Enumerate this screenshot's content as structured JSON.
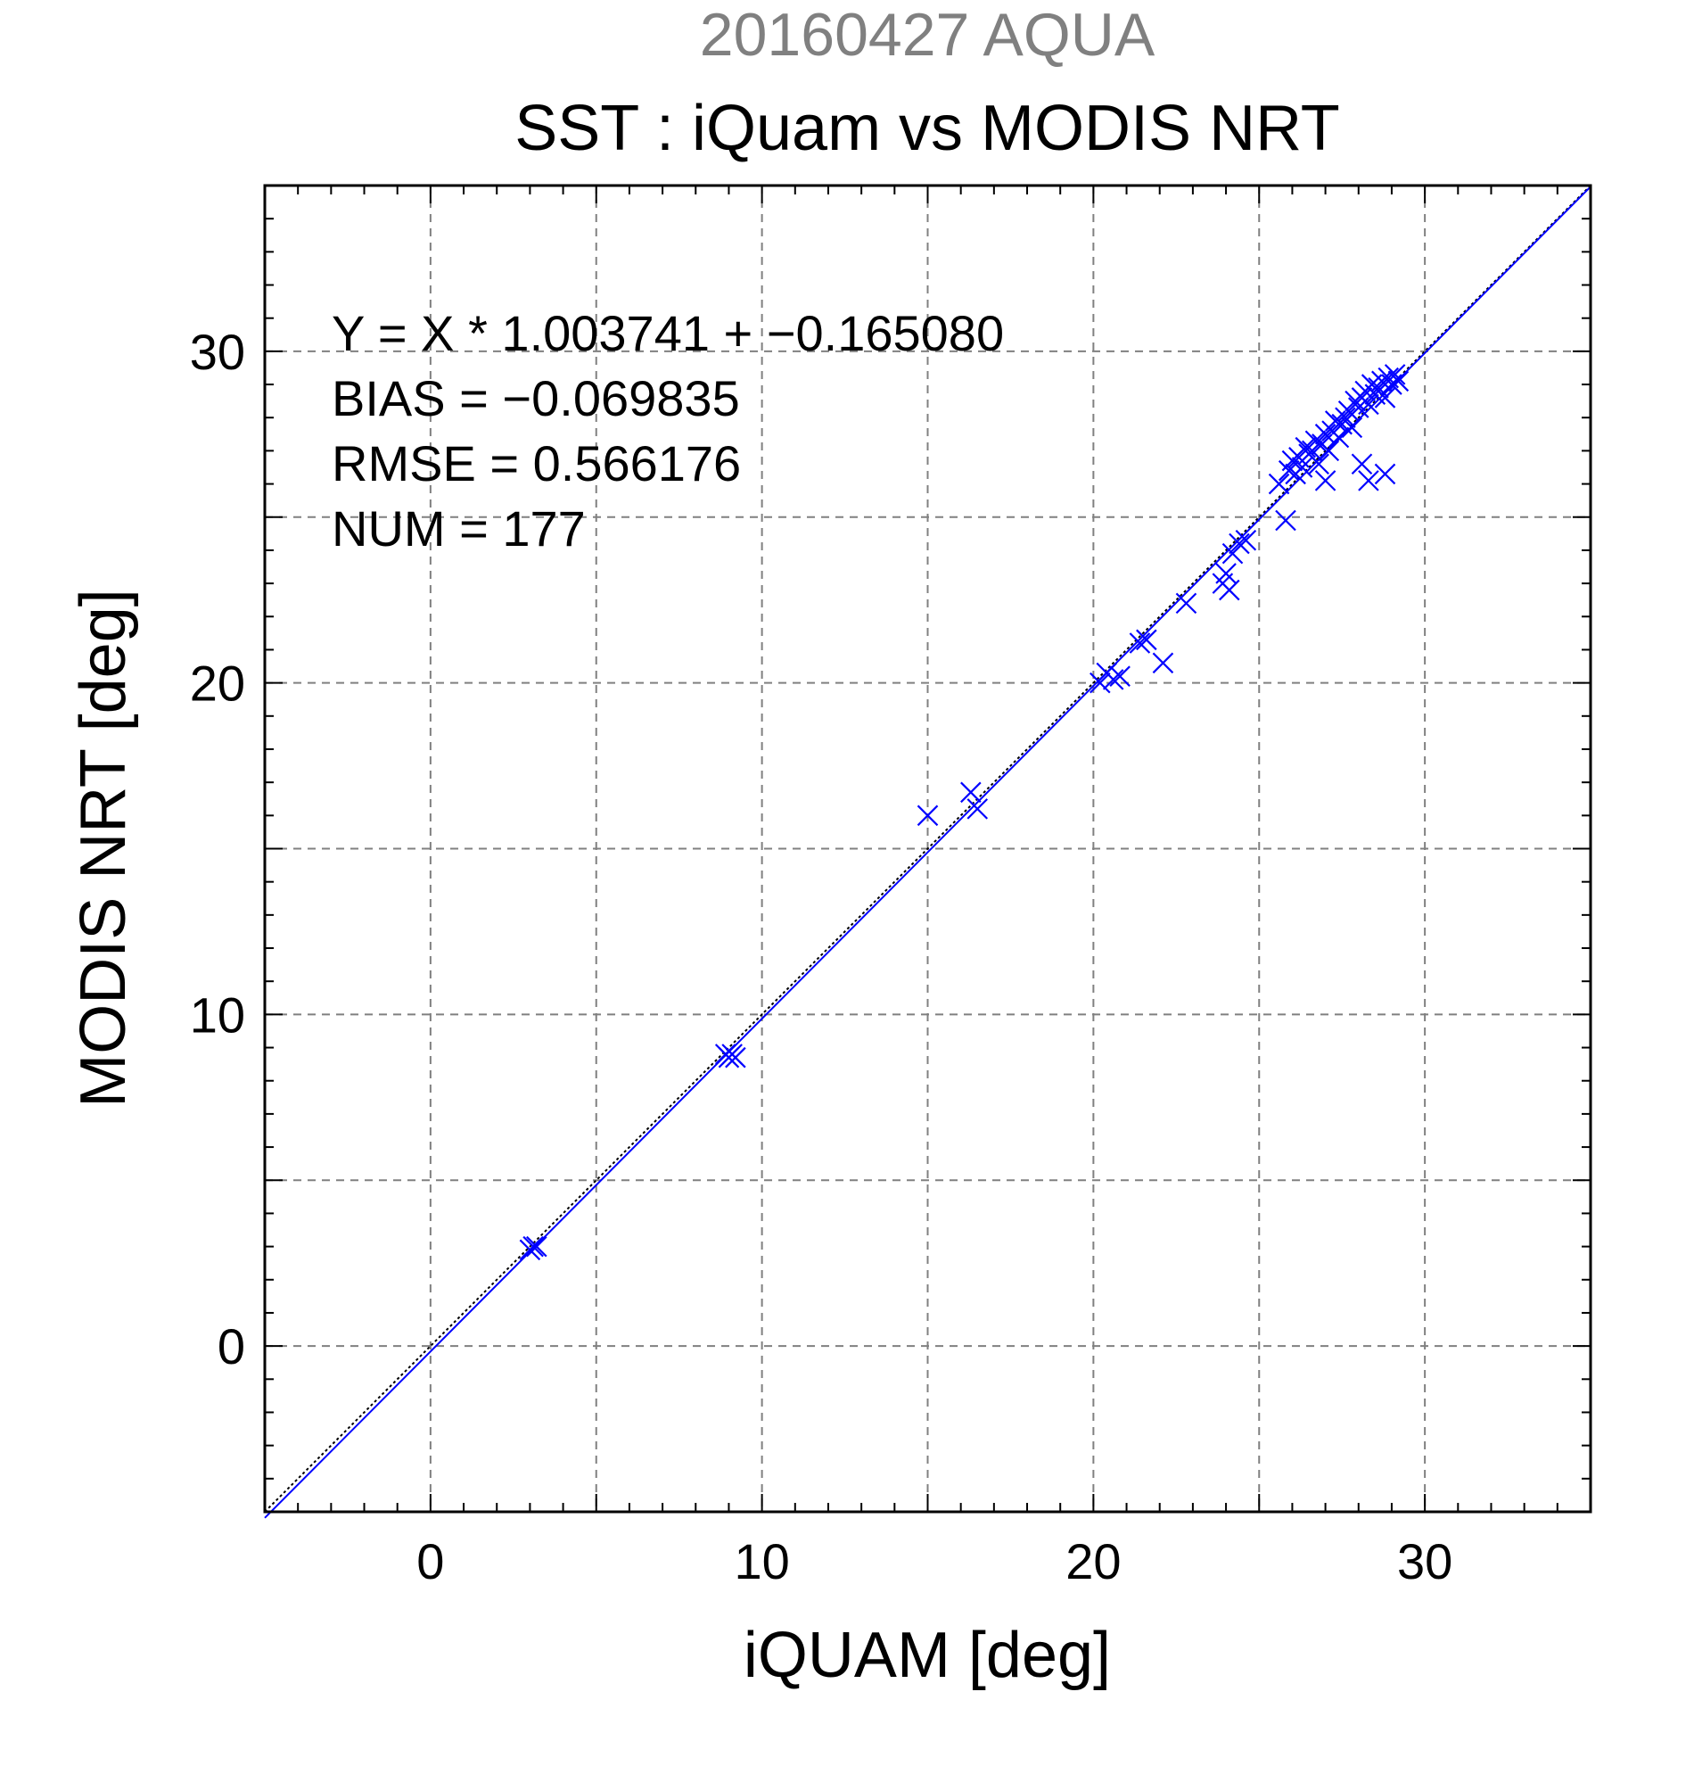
{
  "chart_data": {
    "type": "scatter",
    "title": "20160427 AQUA",
    "subtitle": "SST : iQuam vs MODIS NRT",
    "xlabel": "iQUAM [deg]",
    "ylabel": "MODIS NRT [deg]",
    "xlim": [
      -5,
      35
    ],
    "ylim": [
      -5,
      35
    ],
    "grid": true,
    "xticks": [
      0,
      10,
      20,
      30
    ],
    "yticks": [
      0,
      10,
      20,
      30
    ],
    "annotations": [
      "Y = X * 1.003741 + −0.165080",
      "BIAS = −0.069835",
      "RMSE = 0.566176",
      "NUM = 177"
    ],
    "fit_line": {
      "slope": 1.003741,
      "intercept": -0.16508
    },
    "marker": "x",
    "colors": {
      "points": "#0000ff",
      "fit": "#0000ff",
      "identity": "#000000",
      "title": "#808080",
      "grid": "#808080"
    },
    "x": [
      3.0,
      3.1,
      3.2,
      8.9,
      9.0,
      9.1,
      9.2,
      15.0,
      16.3,
      16.5,
      20.2,
      20.4,
      20.6,
      20.8,
      21.4,
      21.6,
      22.1,
      22.8,
      23.9,
      24.0,
      24.1,
      24.2,
      24.4,
      24.6,
      25.6,
      25.8,
      25.9,
      26.0,
      26.1,
      26.2,
      26.3,
      26.4,
      26.5,
      26.6,
      26.7,
      26.8,
      26.9,
      27.0,
      27.1,
      27.2,
      27.3,
      27.4,
      27.5,
      27.6,
      27.7,
      27.8,
      27.9,
      28.0,
      28.1,
      28.2,
      28.3,
      28.4,
      28.5,
      28.6,
      28.7,
      28.8,
      28.9,
      29.0,
      29.1,
      29.2,
      28.3,
      28.8,
      27.0,
      28.1
    ],
    "y": [
      2.9,
      3.0,
      3.0,
      8.8,
      8.7,
      8.8,
      8.7,
      16.0,
      16.7,
      16.2,
      20.0,
      20.3,
      20.1,
      20.2,
      21.2,
      21.3,
      20.6,
      22.4,
      23.0,
      23.3,
      22.8,
      23.9,
      24.2,
      24.3,
      26.0,
      24.9,
      26.4,
      26.7,
      26.3,
      26.8,
      26.5,
      27.1,
      26.9,
      27.0,
      27.3,
      26.6,
      27.2,
      27.5,
      27.0,
      27.6,
      27.9,
      27.4,
      27.8,
      28.0,
      28.2,
      27.7,
      28.5,
      28.3,
      28.6,
      28.8,
      28.4,
      29.0,
      28.7,
      28.9,
      29.1,
      28.6,
      29.2,
      29.0,
      29.3,
      29.1,
      26.1,
      26.3,
      26.1,
      26.6
    ]
  }
}
